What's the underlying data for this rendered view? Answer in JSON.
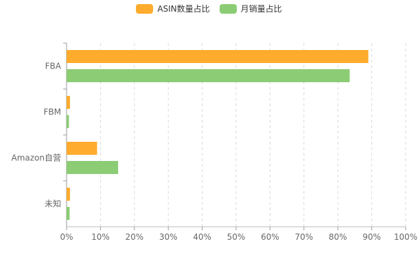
{
  "chart_data": {
    "type": "bar",
    "orientation": "horizontal",
    "categories": [
      "FBA",
      "FBM",
      "Amazon自营",
      "未知"
    ],
    "series": [
      {
        "name": "ASIN数量占比",
        "color": "#ffab2e",
        "values": [
          89,
          1,
          9,
          1
        ]
      },
      {
        "name": "月销量占比",
        "color": "#8bcc74",
        "values": [
          83.5,
          0.7,
          15.2,
          0.9
        ]
      }
    ],
    "x_ticks": [
      "0%",
      "10%",
      "20%",
      "30%",
      "40%",
      "50%",
      "60%",
      "70%",
      "80%",
      "90%",
      "100%"
    ],
    "xlim": [
      0,
      100
    ],
    "grid": "vertical-dashed",
    "legend": "top-center"
  }
}
